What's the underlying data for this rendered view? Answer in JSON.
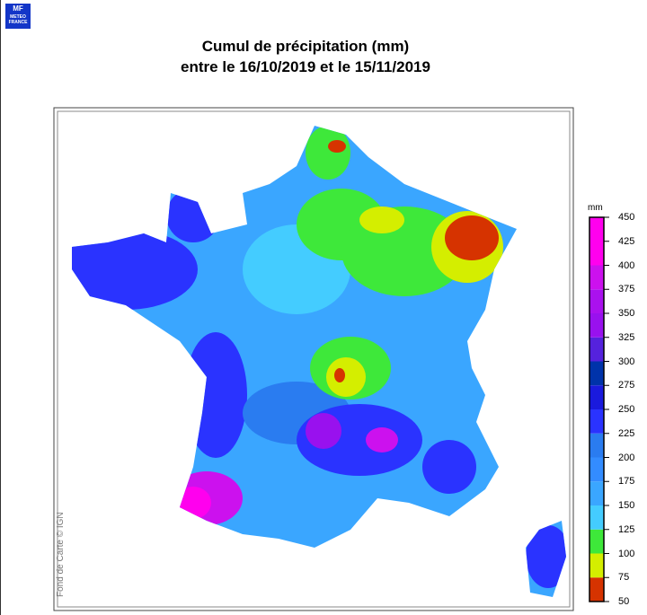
{
  "logo": {
    "mark": "MF",
    "line1": "METEO",
    "line2": "FRANCE"
  },
  "title": {
    "line1": "Cumul de précipitation (mm)",
    "line2": "entre le 16/10/2019 et le 15/11/2019"
  },
  "credit": "Fond de Carte © IGN",
  "legend": {
    "unit": "mm",
    "ticks": [
      "450",
      "425",
      "400",
      "375",
      "350",
      "325",
      "300",
      "275",
      "250",
      "225",
      "200",
      "175",
      "150",
      "125",
      "100",
      "75",
      "50"
    ],
    "bins": [
      {
        "from": 50,
        "to": 75,
        "color": "#d63300"
      },
      {
        "from": 75,
        "to": 100,
        "color": "#d4ee00"
      },
      {
        "from": 100,
        "to": 125,
        "color": "#3ee83a"
      },
      {
        "from": 125,
        "to": 150,
        "color": "#44ccff"
      },
      {
        "from": 150,
        "to": 175,
        "color": "#3aa6ff"
      },
      {
        "from": 175,
        "to": 200,
        "color": "#338cff"
      },
      {
        "from": 200,
        "to": 225,
        "color": "#2a7cf0"
      },
      {
        "from": 225,
        "to": 250,
        "color": "#2a33ff"
      },
      {
        "from": 250,
        "to": 275,
        "color": "#1a1add"
      },
      {
        "from": 275,
        "to": 300,
        "color": "#0033aa"
      },
      {
        "from": 300,
        "to": 325,
        "color": "#5522dd"
      },
      {
        "from": 325,
        "to": 350,
        "color": "#9911ee"
      },
      {
        "from": 350,
        "to": 375,
        "color": "#aa11ee"
      },
      {
        "from": 375,
        "to": 400,
        "color": "#cc11ee"
      },
      {
        "from": 400,
        "to": 450,
        "color": "#ff00ee"
      }
    ]
  }
}
